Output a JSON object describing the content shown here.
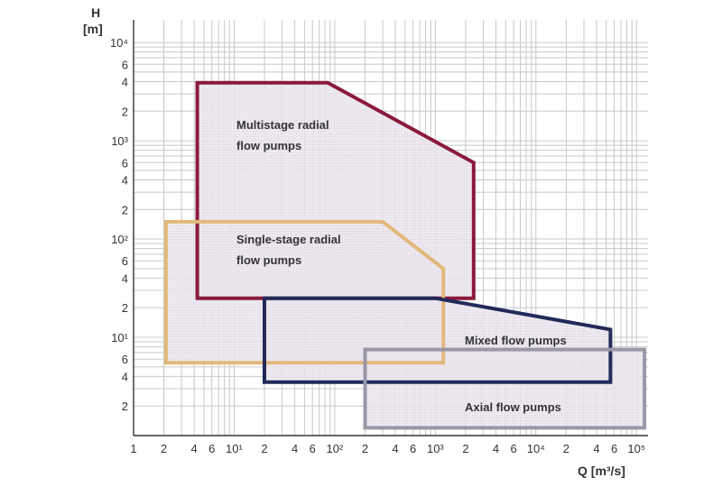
{
  "chart_data": {
    "type": "area",
    "title": "",
    "xlabel": "Q [m³/s]",
    "ylabel": "H [m]",
    "xscale": "log",
    "yscale": "log",
    "xlim": [
      1,
      130000
    ],
    "ylim": [
      1,
      17000
    ],
    "grid": true,
    "x_ticks": [
      {
        "v": 1,
        "t": "1"
      },
      {
        "v": 2,
        "t": "2"
      },
      {
        "v": 4,
        "t": "4"
      },
      {
        "v": 6,
        "t": "6"
      },
      {
        "v": 10,
        "t": "10¹"
      },
      {
        "v": 20,
        "t": "2"
      },
      {
        "v": 40,
        "t": "4"
      },
      {
        "v": 60,
        "t": "6"
      },
      {
        "v": 100,
        "t": "10²"
      },
      {
        "v": 200,
        "t": "2"
      },
      {
        "v": 400,
        "t": "4"
      },
      {
        "v": 600,
        "t": "6"
      },
      {
        "v": 1000,
        "t": "10³"
      },
      {
        "v": 2000,
        "t": "2"
      },
      {
        "v": 4000,
        "t": "4"
      },
      {
        "v": 6000,
        "t": "6"
      },
      {
        "v": 10000,
        "t": "10⁴"
      },
      {
        "v": 20000,
        "t": "2"
      },
      {
        "v": 40000,
        "t": "4"
      },
      {
        "v": 60000,
        "t": "6"
      },
      {
        "v": 100000,
        "t": "10⁵"
      }
    ],
    "y_ticks": [
      {
        "v": 2,
        "t": "2"
      },
      {
        "v": 4,
        "t": "4"
      },
      {
        "v": 6,
        "t": "6"
      },
      {
        "v": 10,
        "t": "10¹"
      },
      {
        "v": 20,
        "t": "2"
      },
      {
        "v": 40,
        "t": "4"
      },
      {
        "v": 60,
        "t": "6"
      },
      {
        "v": 100,
        "t": "10²"
      },
      {
        "v": 200,
        "t": "2"
      },
      {
        "v": 400,
        "t": "4"
      },
      {
        "v": 600,
        "t": "6"
      },
      {
        "v": 1000,
        "t": "10³"
      },
      {
        "v": 2000,
        "t": "2"
      },
      {
        "v": 4000,
        "t": "4"
      },
      {
        "v": 6000,
        "t": "6"
      },
      {
        "v": 10000,
        "t": "10⁴"
      }
    ],
    "series": [
      {
        "name": "Multistage radial flow pumps",
        "label_lines": [
          "Multistage radial",
          "flow pumps"
        ],
        "color": "#8b1a3c",
        "polygon": [
          [
            4.3,
            3900
          ],
          [
            85,
            3900
          ],
          [
            2400,
            600
          ],
          [
            2400,
            25
          ],
          [
            4.3,
            25
          ]
        ]
      },
      {
        "name": "Single-stage radial flow pumps",
        "label_lines": [
          "Single-stage radial",
          "flow pumps"
        ],
        "color": "#e2b87a",
        "polygon": [
          [
            2.1,
            150
          ],
          [
            300,
            150
          ],
          [
            1200,
            50
          ],
          [
            1200,
            5.5
          ],
          [
            2.1,
            5.5
          ]
        ]
      },
      {
        "name": "Mixed flow pumps",
        "label_lines": [
          "Mixed flow pumps"
        ],
        "color": "#222a5a",
        "polygon": [
          [
            20,
            25
          ],
          [
            1000,
            25
          ],
          [
            55000,
            12
          ],
          [
            55000,
            3.5
          ],
          [
            20,
            3.5
          ]
        ]
      },
      {
        "name": "Axial flow pumps",
        "label_lines": [
          "Axial flow pumps"
        ],
        "color": "#9a97a8",
        "polygon": [
          [
            200,
            7.5
          ],
          [
            120000,
            7.5
          ],
          [
            120000,
            1.2
          ],
          [
            200,
            1.2
          ]
        ]
      }
    ]
  }
}
